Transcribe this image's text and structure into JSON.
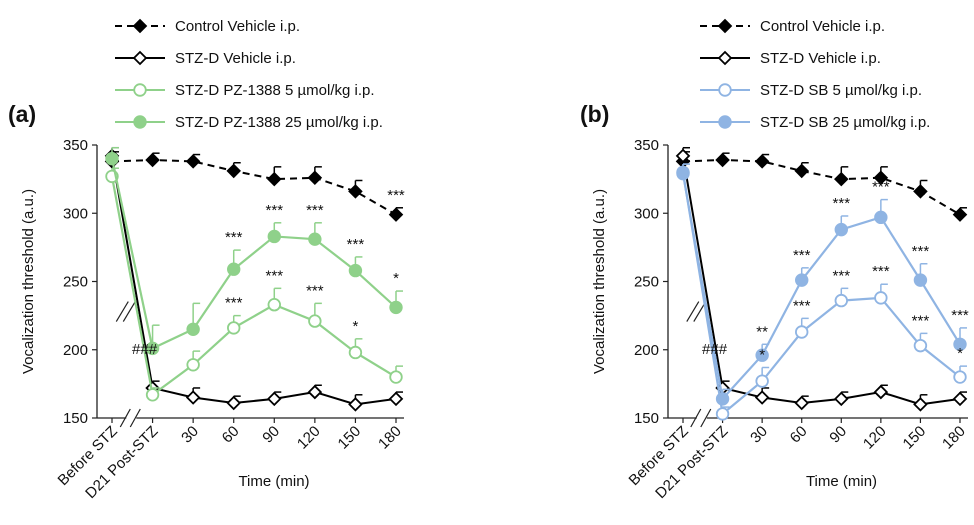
{
  "chart_data": [
    {
      "type": "line",
      "panel_label": "(a)",
      "xlabel": "Time  (min)",
      "ylabel": "Vocalization threshold (a.u.)",
      "categories": [
        "Before STZ",
        "D21 Post-STZ",
        "30",
        "60",
        "90",
        "120",
        "150",
        "180"
      ],
      "ylim": [
        150,
        350
      ],
      "yticks": [
        "150",
        "200",
        "250",
        "300",
        "350"
      ],
      "series": [
        {
          "name": "Control Vehicle i.p.",
          "color": "#000000",
          "marker": "diamond-filled",
          "dash": "dashed",
          "values": [
            338,
            339,
            338,
            331,
            325,
            326,
            316,
            299
          ],
          "err": [
            7,
            5,
            5,
            6,
            9,
            8,
            8,
            5
          ]
        },
        {
          "name": "STZ-D Vehicle i.p.",
          "color": "#000000",
          "marker": "diamond-open",
          "dash": "solid",
          "values": [
            342,
            172,
            165,
            161,
            164,
            169,
            160,
            164
          ],
          "err": [
            6,
            5,
            7,
            5,
            5,
            5,
            7,
            5
          ]
        },
        {
          "name": "STZ-D PZ-1388 5 µmol/kg i.p.",
          "color": "#8fd18a",
          "marker": "circle-open",
          "dash": "solid",
          "values": [
            327,
            167,
            189,
            216,
            233,
            221,
            198,
            180
          ],
          "err": [
            6,
            5,
            10,
            9,
            12,
            13,
            10,
            8
          ]
        },
        {
          "name": "STZ-D PZ-1388 25 µmol/kg i.p.",
          "color": "#8fd18a",
          "marker": "circle-filled",
          "dash": "solid",
          "values": [
            340,
            201,
            215,
            259,
            283,
            281,
            258,
            231
          ],
          "err": [
            8,
            17,
            19,
            14,
            10,
            12,
            10,
            12
          ]
        }
      ],
      "annotations": [
        {
          "text": "###",
          "x": "D21 Post-STZ"
        },
        {
          "text": "***",
          "x": "60",
          "series": 3
        },
        {
          "text": "***",
          "x": "90",
          "series": 3
        },
        {
          "text": "***",
          "x": "120",
          "series": 3
        },
        {
          "text": "***",
          "x": "150",
          "series": 3
        },
        {
          "text": "*",
          "x": "180",
          "series": 3
        },
        {
          "text": "***",
          "x": "60",
          "series": 2
        },
        {
          "text": "***",
          "x": "90",
          "series": 2
        },
        {
          "text": "***",
          "x": "120",
          "series": 2
        },
        {
          "text": "*",
          "x": "150",
          "series": 2
        },
        {
          "text": "***",
          "x": "180",
          "series": 0
        }
      ]
    },
    {
      "type": "line",
      "panel_label": "(b)",
      "xlabel": "Time  (min)",
      "ylabel": "Vocalization threshold (a.u.)",
      "categories": [
        "Before STZ",
        "D21 Post-STZ",
        "30",
        "60",
        "90",
        "120",
        "150",
        "180"
      ],
      "ylim": [
        150,
        350
      ],
      "yticks": [
        "150",
        "200",
        "250",
        "300",
        "350"
      ],
      "series": [
        {
          "name": "Control Vehicle i.p.",
          "color": "#000000",
          "marker": "diamond-filled",
          "dash": "dashed",
          "values": [
            338,
            339,
            338,
            331,
            325,
            326,
            316,
            299
          ],
          "err": [
            7,
            5,
            5,
            6,
            9,
            8,
            8,
            5
          ]
        },
        {
          "name": "STZ-D Vehicle i.p.",
          "color": "#000000",
          "marker": "diamond-open",
          "dash": "solid",
          "values": [
            342,
            172,
            165,
            161,
            164,
            169,
            160,
            164
          ],
          "err": [
            6,
            5,
            7,
            5,
            5,
            5,
            7,
            5
          ]
        },
        {
          "name": "STZ-D SB 5 µmol/kg i.p.",
          "color": "#8fb4e3",
          "marker": "circle-open",
          "dash": "solid",
          "values": [
            330,
            153,
            177,
            213,
            236,
            238,
            203,
            180
          ],
          "err": [
            6,
            5,
            10,
            10,
            9,
            10,
            9,
            8
          ]
        },
        {
          "name": "STZ-D SB 25 µmol/kg i.p.",
          "color": "#8fb4e3",
          "marker": "circle-filled",
          "dash": "solid",
          "values": [
            329,
            164,
            196,
            251,
            288,
            297,
            251,
            204
          ],
          "err": [
            7,
            7,
            8,
            9,
            10,
            13,
            12,
            12
          ]
        }
      ],
      "annotations": [
        {
          "text": "###",
          "x": "D21 Post-STZ"
        },
        {
          "text": "**",
          "x": "30",
          "series": 3
        },
        {
          "text": "***",
          "x": "60",
          "series": 3
        },
        {
          "text": "***",
          "x": "90",
          "series": 3
        },
        {
          "text": "***",
          "x": "120",
          "series": 3
        },
        {
          "text": "***",
          "x": "150",
          "series": 3
        },
        {
          "text": "***",
          "x": "180",
          "series": 3
        },
        {
          "text": "*",
          "x": "30",
          "series": 2
        },
        {
          "text": "***",
          "x": "60",
          "series": 2
        },
        {
          "text": "***",
          "x": "90",
          "series": 2
        },
        {
          "text": "***",
          "x": "120",
          "series": 2
        },
        {
          "text": "***",
          "x": "150",
          "series": 2
        },
        {
          "text": "*",
          "x": "180",
          "series": 2
        }
      ]
    }
  ]
}
